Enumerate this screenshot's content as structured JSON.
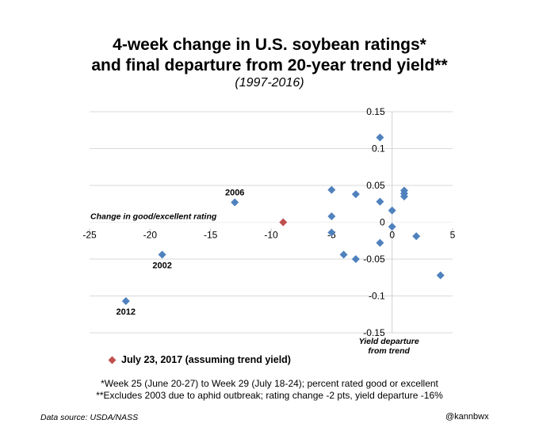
{
  "chart_data": {
    "type": "scatter",
    "title": "4-week change in U.S. soybean ratings*",
    "title_line2": "and final departure from 20-year trend yield**",
    "subtitle": "(1997-2016)",
    "xlabel": "Change in good/excellent rating",
    "ylabel": "Yield departure from trend",
    "ylabel_line1": "Yield departure",
    "ylabel_line2": "from trend",
    "xlim": [
      -25,
      5
    ],
    "ylim": [
      -0.15,
      0.15
    ],
    "xticks": [
      -25,
      -20,
      -15,
      -10,
      -5,
      0,
      5
    ],
    "yticks": [
      0.15,
      0.1,
      0.05,
      0,
      -0.05,
      -0.1,
      -0.15
    ],
    "xtick_labels": [
      "-25",
      "-20",
      "-15",
      "-10",
      "-5",
      "0",
      "5"
    ],
    "ytick_labels": [
      "0.15",
      "0.1",
      "0.05",
      "0",
      "-0.05",
      "-0.1",
      "-0.15"
    ],
    "grid": "horizontal",
    "series": [
      {
        "name": "1997-2016",
        "color": "#4F81BD",
        "marker": "diamond",
        "points": [
          {
            "x": -22,
            "y": -0.107,
            "label": "2012"
          },
          {
            "x": -19,
            "y": -0.044,
            "label": "2002"
          },
          {
            "x": -13,
            "y": 0.027,
            "label": "2006"
          },
          {
            "x": -5,
            "y": 0.044
          },
          {
            "x": -5,
            "y": 0.008
          },
          {
            "x": -5,
            "y": -0.014
          },
          {
            "x": -4,
            "y": -0.044
          },
          {
            "x": -3,
            "y": 0.038
          },
          {
            "x": -3,
            "y": -0.05
          },
          {
            "x": -1,
            "y": 0.115
          },
          {
            "x": -1,
            "y": 0.028
          },
          {
            "x": -1,
            "y": -0.028
          },
          {
            "x": 0,
            "y": 0.016
          },
          {
            "x": 0,
            "y": -0.006
          },
          {
            "x": 1,
            "y": 0.043
          },
          {
            "x": 1,
            "y": 0.039
          },
          {
            "x": 1,
            "y": 0.035
          },
          {
            "x": 2,
            "y": -0.019
          },
          {
            "x": 4,
            "y": -0.072
          }
        ]
      },
      {
        "name": "July 23, 2017 (assuming trend yield)",
        "color": "#C0504D",
        "marker": "diamond",
        "points": [
          {
            "x": -9,
            "y": 0
          }
        ]
      }
    ],
    "legend": {
      "position": "bottom-left",
      "entries": [
        "July 23, 2017 (assuming trend yield)"
      ]
    }
  },
  "footnotes": [
    "*Week 25 (June 20-27) to Week 29 (July 18-24); percent rated good or excellent",
    "**Excludes 2003 due to aphid outbreak; rating change -2 pts, yield departure -16%"
  ],
  "source": "Data source: USDA/NASS",
  "handle": "@kannbwx"
}
